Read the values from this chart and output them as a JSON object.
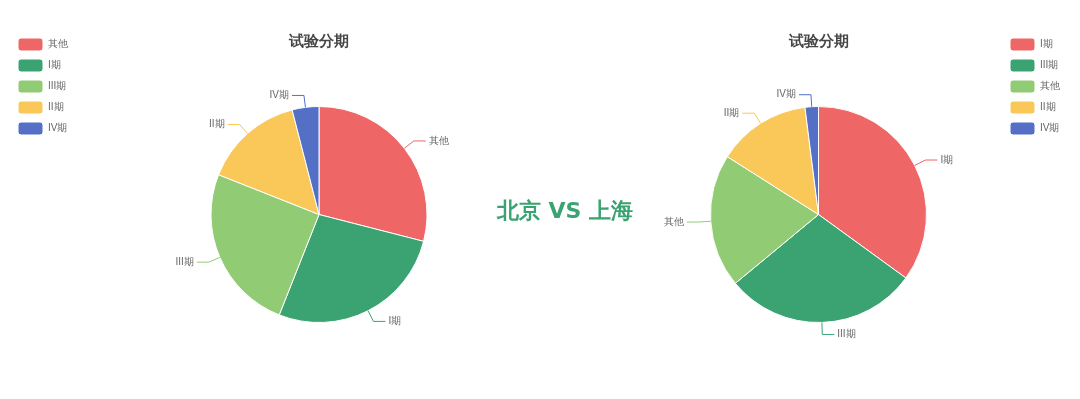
{
  "chart_data": [
    {
      "type": "pie",
      "title": "试验分期",
      "categories": [
        "其他",
        "I期",
        "III期",
        "II期",
        "IV期"
      ],
      "values": [
        29,
        27,
        25,
        15,
        4
      ],
      "colors": [
        "#ee6666",
        "#3ba272",
        "#91cc75",
        "#fac858",
        "#5470c6"
      ],
      "legend": "top left"
    },
    {
      "type": "other",
      "title": "北京 VS 上海"
    },
    {
      "type": "pie",
      "title": "试验分期",
      "categories": [
        "I期",
        "III期",
        "其他",
        "II期",
        "IV期"
      ],
      "values": [
        35,
        29,
        20,
        14,
        2
      ],
      "colors": [
        "#ee6666",
        "#3ba272",
        "#91cc75",
        "#fac858",
        "#5470c6"
      ],
      "legend": "top right"
    }
  ]
}
